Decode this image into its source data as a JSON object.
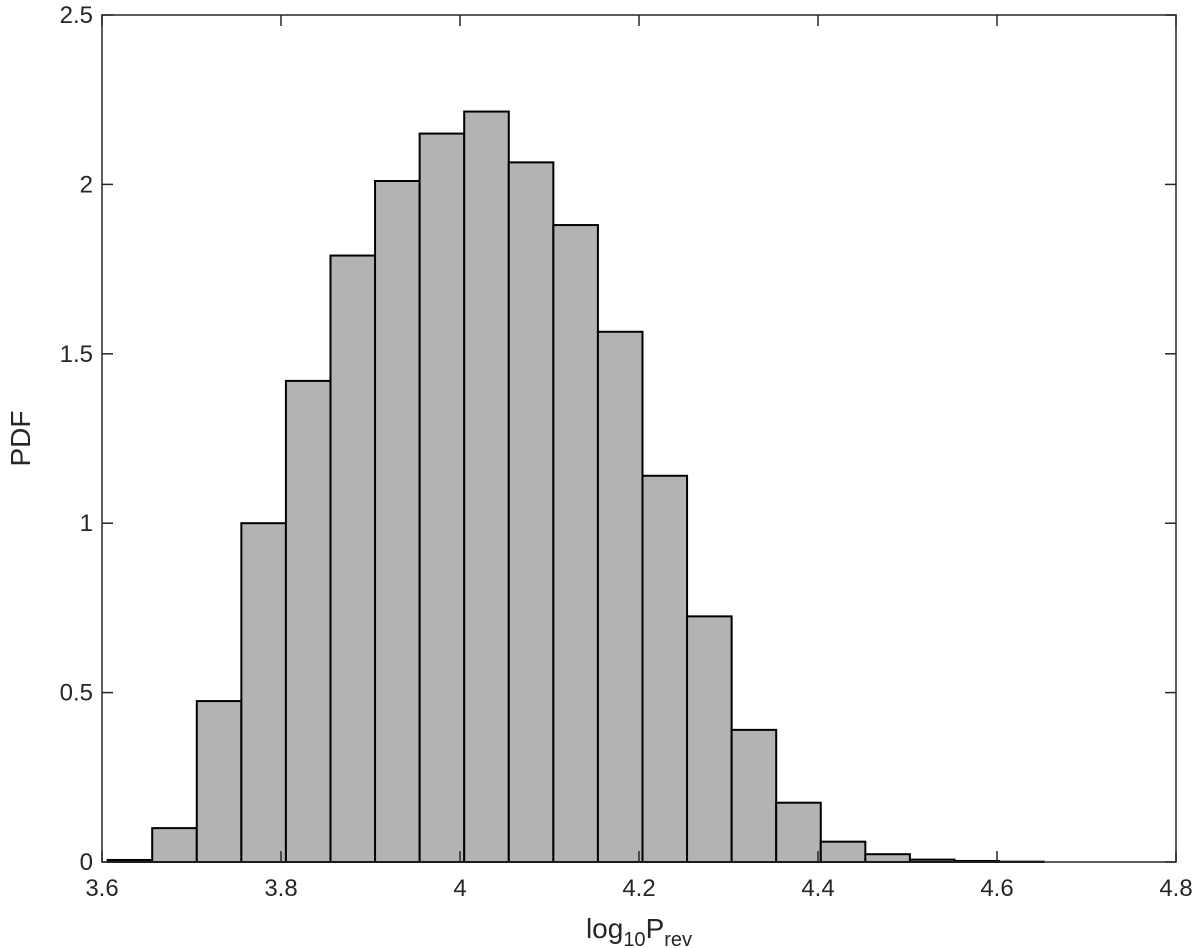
{
  "chart_data": {
    "type": "bar",
    "xlabel": {
      "base": "log",
      "base_sub": "10",
      "main": "P",
      "main_sub": "rev"
    },
    "ylabel": "PDF",
    "xlim": [
      3.6,
      4.8
    ],
    "ylim": [
      0,
      2.5
    ],
    "xticks": [
      3.6,
      3.8,
      4,
      4.2,
      4.4,
      4.6,
      4.8
    ],
    "xtick_labels": [
      "3.6",
      "3.8",
      "4",
      "4.2",
      "4.4",
      "4.6",
      "4.8"
    ],
    "yticks": [
      0,
      0.5,
      1,
      1.5,
      2,
      2.5
    ],
    "ytick_labels": [
      "0",
      "0.5",
      "1",
      "1.5",
      "2",
      "2.5"
    ],
    "bin_edges": [
      3.6063,
      3.6561,
      3.7059,
      3.7557,
      3.8055,
      3.8553,
      3.9051,
      3.9549,
      4.0047,
      4.0545,
      4.1043,
      4.1541,
      4.2039,
      4.2537,
      4.3035,
      4.3533,
      4.4031,
      4.4529,
      4.5027,
      4.5525,
      4.6023,
      4.6521
    ],
    "values": [
      0.006,
      0.1,
      0.475,
      1.0,
      1.42,
      1.79,
      2.01,
      2.15,
      2.215,
      2.065,
      1.88,
      1.565,
      1.14,
      0.725,
      0.39,
      0.175,
      0.06,
      0.023,
      0.007,
      0.003,
      0.001
    ],
    "bar_color": "#b3b3b3",
    "edge_color": "#000000",
    "grid": false
  }
}
